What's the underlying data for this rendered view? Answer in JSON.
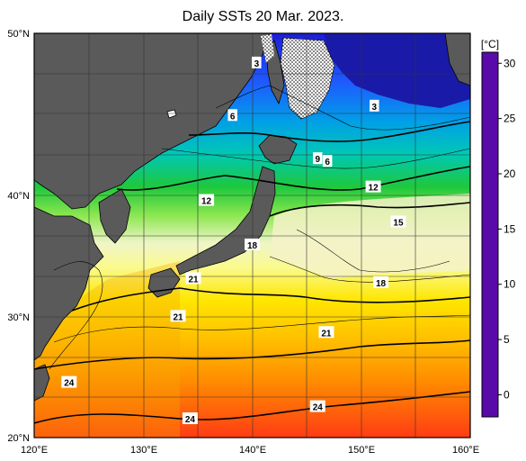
{
  "title": "Daily SSTs 20 Mar. 2023.",
  "unit_label": "[°C]",
  "colors": {
    "land": "#5a5a5a",
    "frame": "#000000",
    "grid": "#333333"
  },
  "lat_labels": [
    "50°N",
    "40°N",
    "30°N",
    "20°N"
  ],
  "lon_labels": [
    "120°E",
    "130°E",
    "140°E",
    "150°E",
    "160°E"
  ],
  "colorbar": {
    "ticks": [
      "30",
      "25",
      "20",
      "15",
      "10",
      "5",
      "0"
    ],
    "min": -2,
    "max": 31
  },
  "contour_labels": [
    {
      "text": "3",
      "lon": 140.4,
      "lat": 47.8
    },
    {
      "text": "3",
      "lon": 151.2,
      "lat": 44.6
    },
    {
      "text": "6",
      "lon": 138.2,
      "lat": 43.9
    },
    {
      "text": "9",
      "lon": 146.0,
      "lat": 40.7
    },
    {
      "text": "6",
      "lon": 146.9,
      "lat": 40.5
    },
    {
      "text": "12",
      "lon": 135.8,
      "lat": 37.6
    },
    {
      "text": "12",
      "lon": 151.1,
      "lat": 38.6
    },
    {
      "text": "15",
      "lon": 153.4,
      "lat": 36.0
    },
    {
      "text": "18",
      "lon": 140.0,
      "lat": 34.3
    },
    {
      "text": "18",
      "lon": 151.8,
      "lat": 31.5
    },
    {
      "text": "21",
      "lon": 134.6,
      "lat": 31.8
    },
    {
      "text": "21",
      "lon": 133.2,
      "lat": 29.0
    },
    {
      "text": "21",
      "lon": 146.8,
      "lat": 27.8
    },
    {
      "text": "24",
      "lon": 123.2,
      "lat": 24.1
    },
    {
      "text": "24",
      "lon": 146.0,
      "lat": 22.3
    },
    {
      "text": "24",
      "lon": 134.3,
      "lat": 21.4
    }
  ]
}
